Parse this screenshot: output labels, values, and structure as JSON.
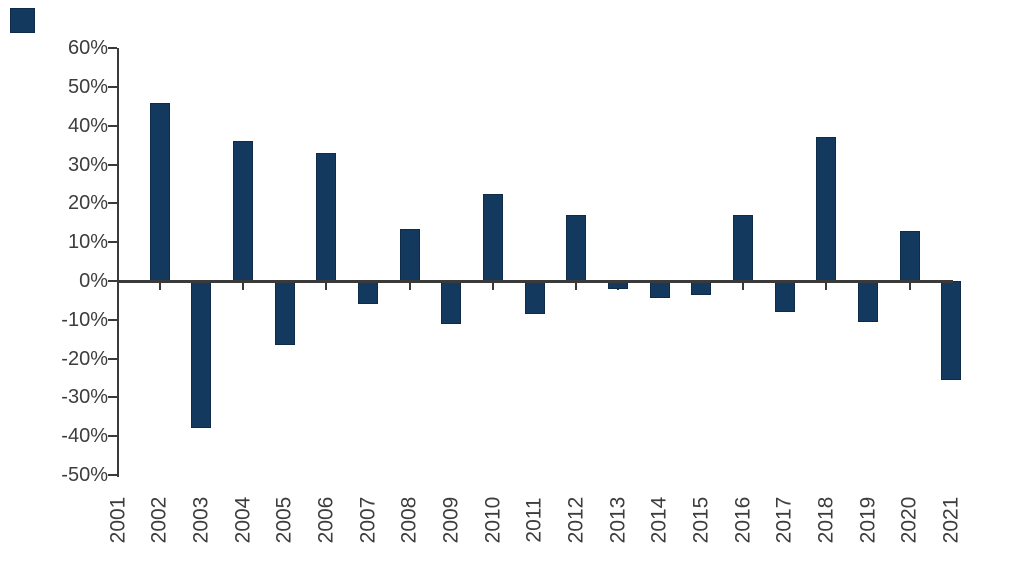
{
  "chart_data": {
    "type": "bar",
    "title": "",
    "xlabel": "",
    "ylabel": "",
    "categories": [
      "2001",
      "2002",
      "2003",
      "2004",
      "2005",
      "2006",
      "2007",
      "2008",
      "2009",
      "2010",
      "2011",
      "2012",
      "2013",
      "2014",
      "2015",
      "2016",
      "2017",
      "2018",
      "2019",
      "2020",
      "2021"
    ],
    "values": [
      0,
      46,
      -38,
      36,
      -16.5,
      33,
      -6,
      13.5,
      -11,
      22.5,
      -8.5,
      17,
      -2,
      -4.5,
      -3.5,
      17,
      -8,
      37,
      -10.5,
      13,
      -25.5
    ],
    "ylim": [
      -50,
      60
    ],
    "ytick_step": 10,
    "ytick_values": [
      60,
      50,
      40,
      30,
      20,
      10,
      0,
      -10,
      -20,
      -30,
      -40,
      -50
    ],
    "ytick_labels": [
      "60%",
      "50%",
      "40%",
      "30%",
      "20%",
      "10%",
      "0%",
      "-10%",
      "-20%",
      "-30%",
      "-40%",
      "-50%"
    ],
    "grid": false,
    "legend_position": "none",
    "colors": {
      "bar_fill": "#14395F",
      "bar_border": "#0E2B48",
      "axis_line": "#3A3A3A",
      "tick_label": "#3D3D3D",
      "background": "#FFFFFF"
    }
  },
  "ui": {
    "corner_swatch_color": "#14395F"
  }
}
